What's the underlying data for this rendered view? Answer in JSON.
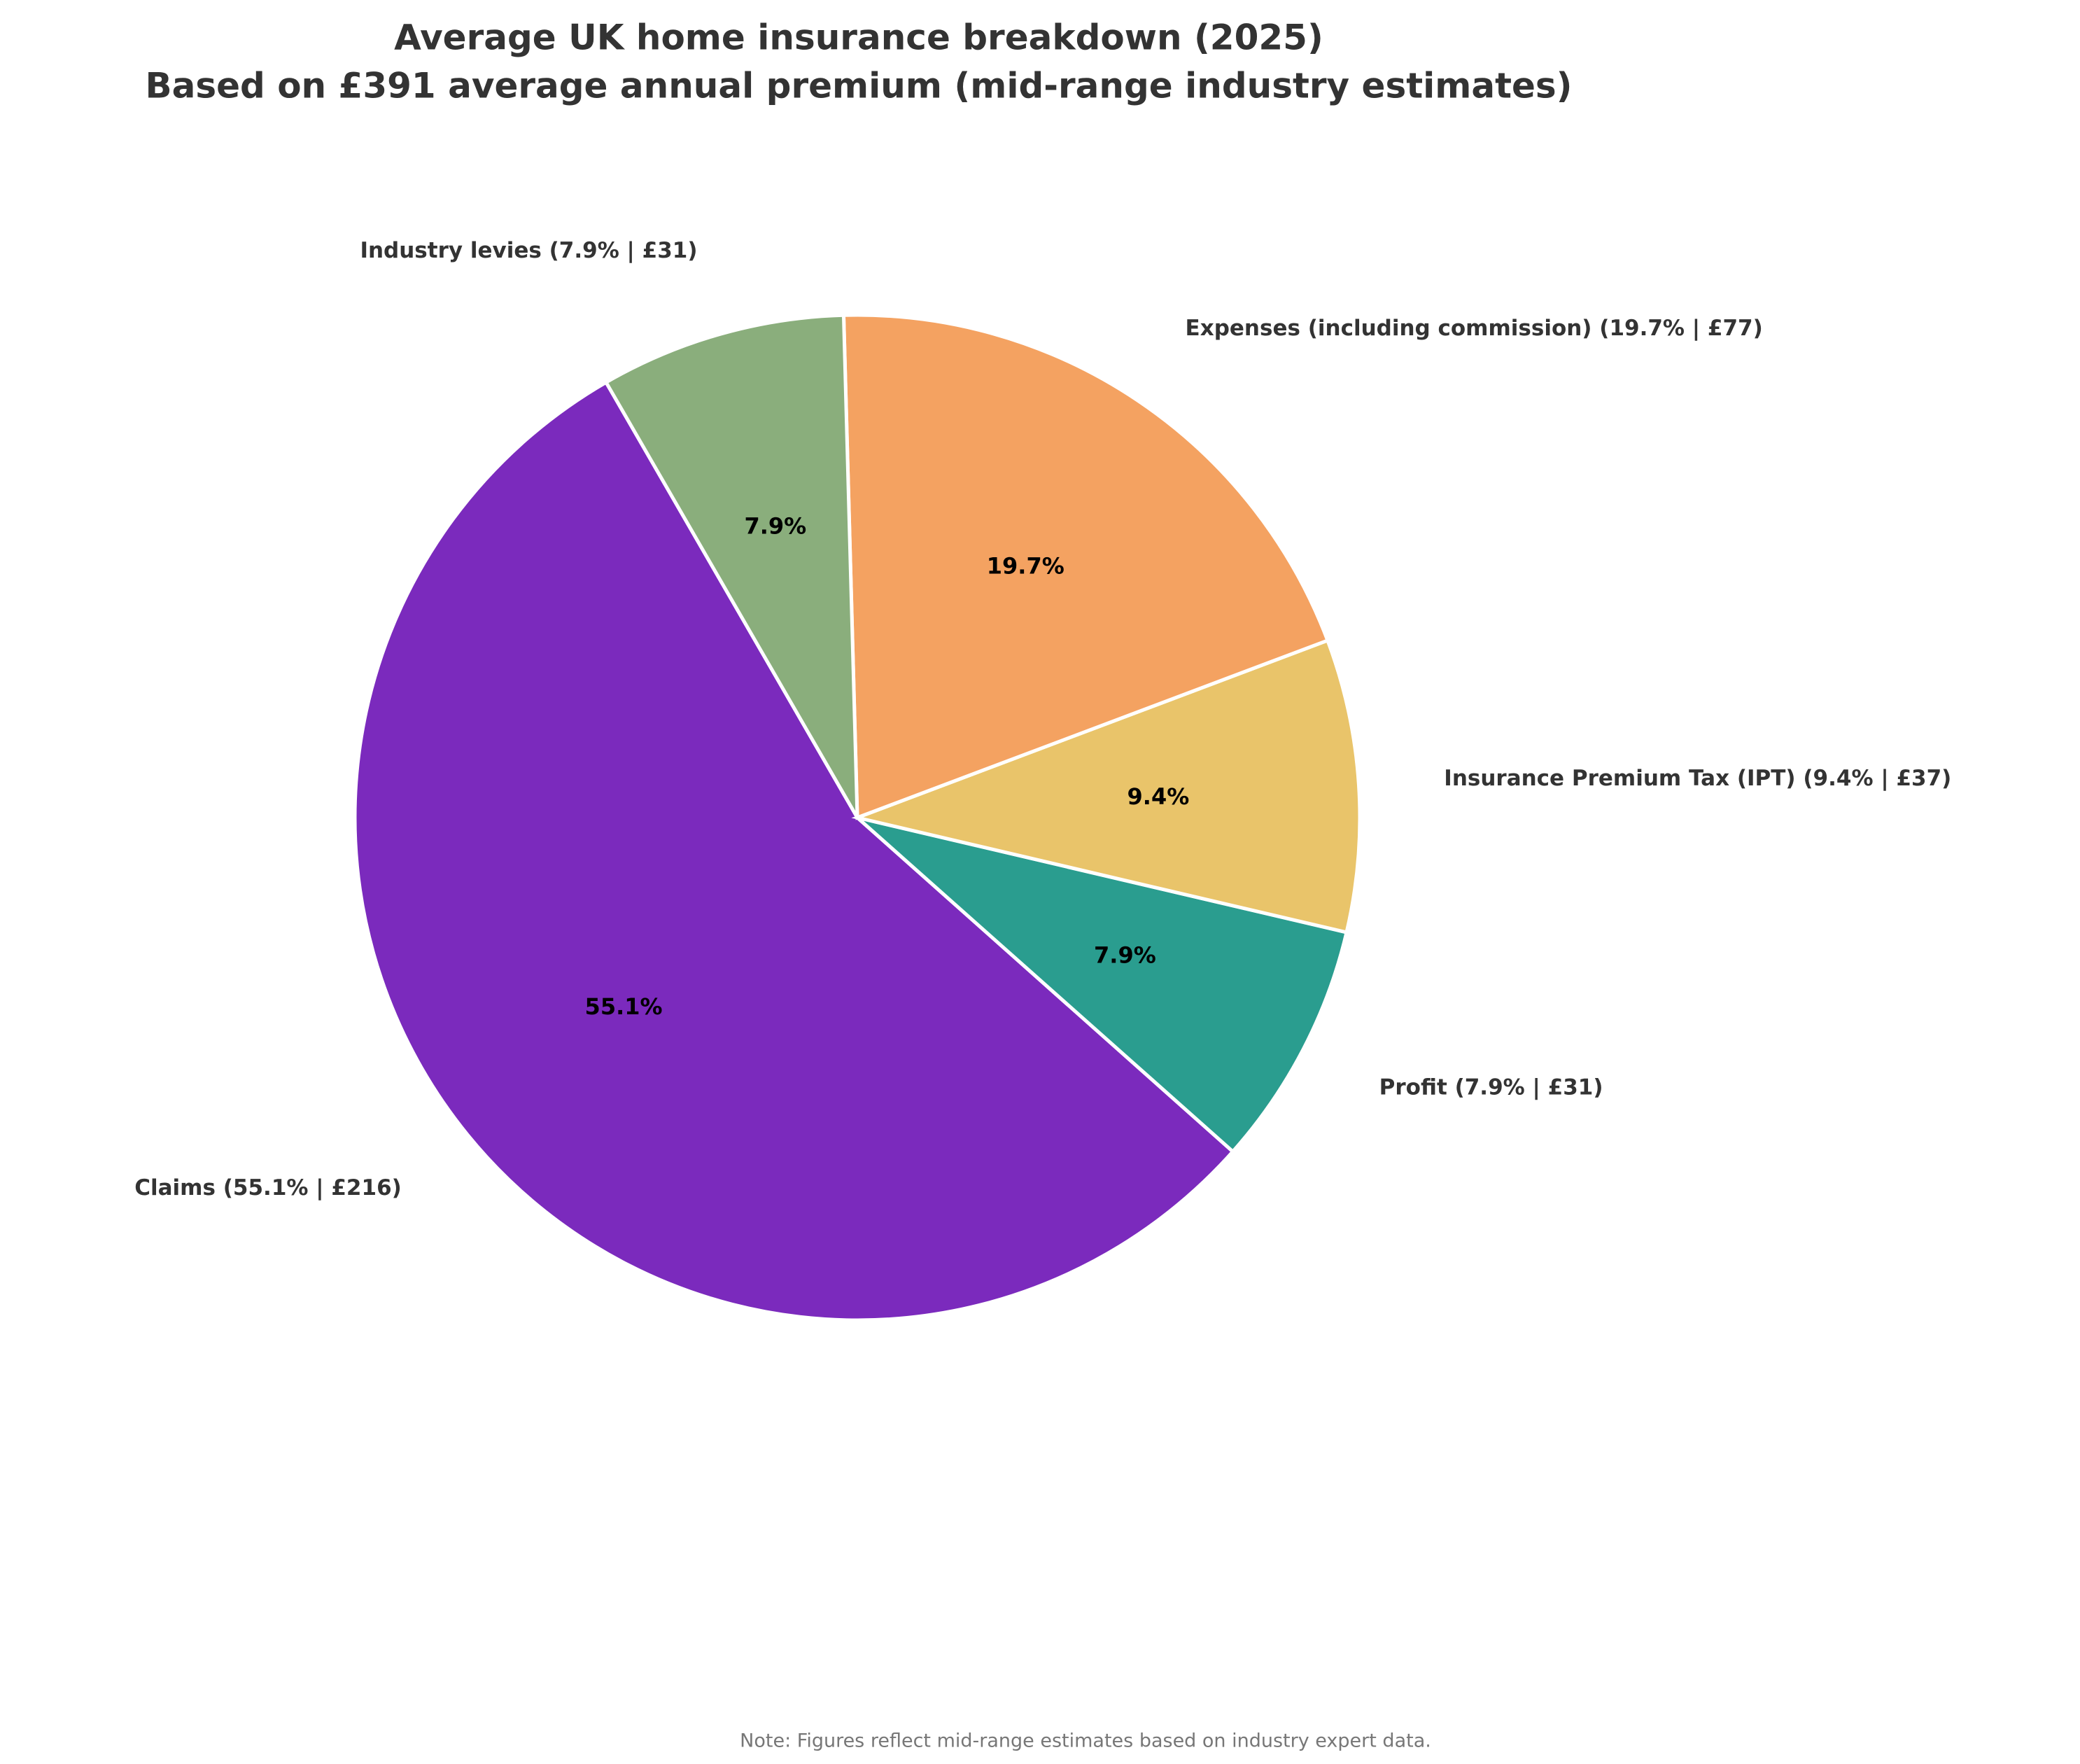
{
  "chart_data": {
    "type": "pie",
    "title": "Average UK home insurance breakdown (2025)",
    "subtitle": "Based on £391 average annual premium (mid-range industry estimates)",
    "categories": [
      "Claims (55.1% | £216)",
      "Profit (7.9% | £31)",
      "Insurance Premium Tax (IPT) (9.4% | £37)",
      "Expenses (including commission) (19.7% | £77)",
      "Industry levies (7.9% | £31)"
    ],
    "values": [
      55.1,
      7.9,
      9.4,
      19.7,
      7.9
    ],
    "value_labels": [
      "55.1%",
      "7.9%",
      "9.4%",
      "19.7%",
      "7.9%"
    ],
    "colors": [
      "#7b2abd",
      "#2a9d8f",
      "#e9c46a",
      "#f4a261",
      "#8aae7c"
    ],
    "note": "Note: Figures reflect mid-range estimates based on industry expert data."
  }
}
